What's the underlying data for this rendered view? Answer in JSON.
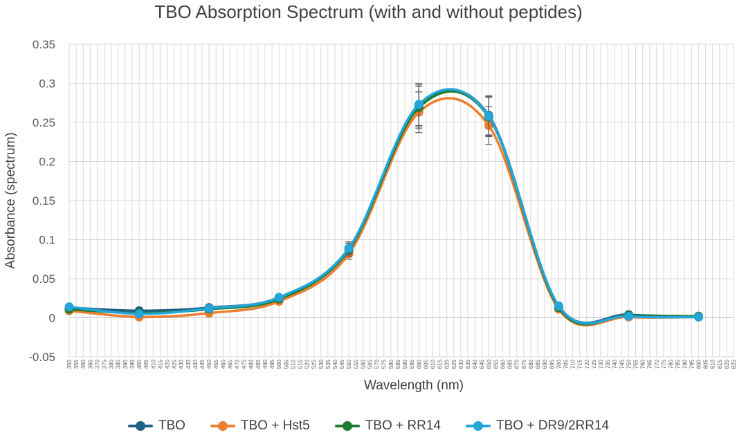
{
  "chart_data": {
    "type": "line",
    "title": "TBO Absorption Spectrum (with and without peptides)",
    "xlabel": "Wavelength (nm)",
    "ylabel": "Absorbance (spectrum)",
    "xlim": [
      350,
      825
    ],
    "ylim": [
      -0.05,
      0.35
    ],
    "yticks": [
      "-0.05",
      "0",
      "0.05",
      "0.1",
      "0.15",
      "0.2",
      "0.25",
      "0.3",
      "0.35"
    ],
    "x": [
      350,
      400,
      450,
      500,
      550,
      600,
      650,
      700,
      750,
      800
    ],
    "series": [
      {
        "name": "TBO",
        "color": "#1f5f86",
        "values": [
          0.013,
          0.009,
          0.013,
          0.026,
          0.089,
          0.271,
          0.259,
          0.015,
          0.004,
          0.002
        ],
        "errors": [
          0,
          0,
          0,
          0,
          0.008,
          0.027,
          0.025,
          0,
          0,
          0
        ]
      },
      {
        "name": "TBO + Hst5",
        "color": "#ed7d31",
        "values": [
          0.009,
          0.001,
          0.006,
          0.021,
          0.082,
          0.263,
          0.246,
          0.011,
          0.001,
          0.001
        ],
        "errors": [
          0,
          0,
          0,
          0,
          0.007,
          0.026,
          0.024,
          0,
          0,
          0
        ]
      },
      {
        "name": "TBO + RR14",
        "color": "#1e7b2f",
        "values": [
          0.011,
          0.006,
          0.011,
          0.024,
          0.087,
          0.269,
          0.257,
          0.013,
          0.003,
          0.002
        ],
        "errors": [
          0,
          0,
          0,
          0,
          0.008,
          0.027,
          0.025,
          0,
          0,
          0
        ]
      },
      {
        "name": "TBO + DR9/2RR14",
        "color": "#23a6d9",
        "values": [
          0.014,
          0.005,
          0.012,
          0.026,
          0.089,
          0.273,
          0.258,
          0.015,
          0.002,
          0.001
        ],
        "errors": [
          0,
          0,
          0,
          0,
          0.008,
          0.027,
          0.025,
          0,
          0,
          0
        ]
      }
    ]
  }
}
